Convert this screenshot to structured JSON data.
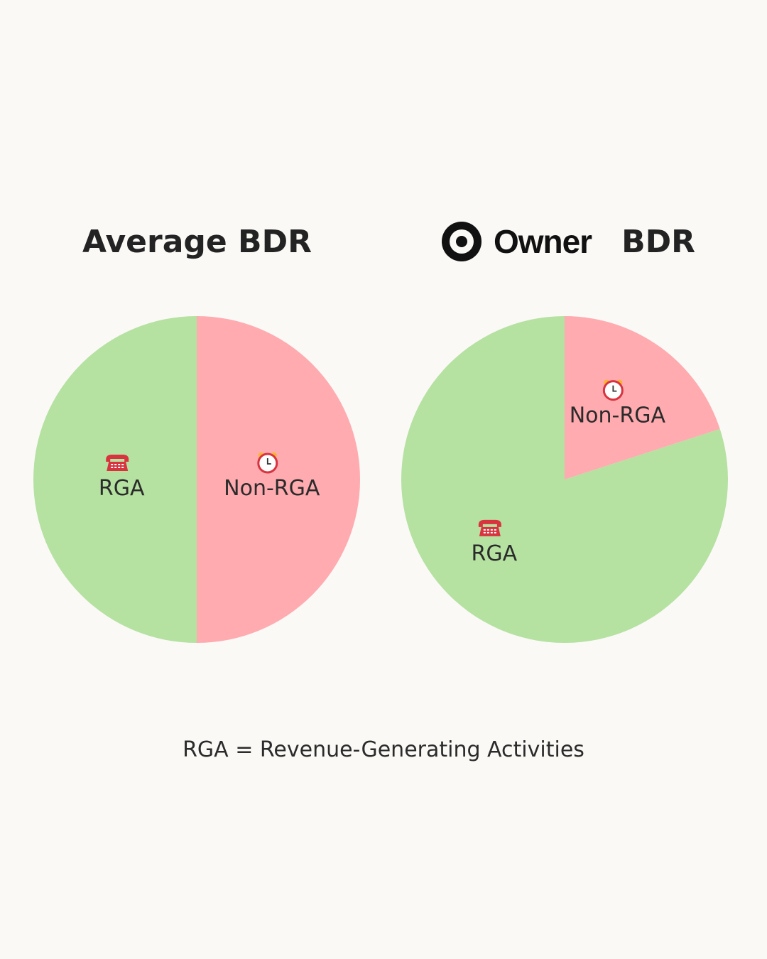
{
  "footnote": "RGA = Revenue-Generating Activities",
  "colors": {
    "rga": "#b5e1a1",
    "non_rga": "#ffabb0",
    "background": "#faf9f6"
  },
  "icons": {
    "rga": "telephone-icon",
    "non_rga": "alarm-clock-icon"
  },
  "chart_data": [
    {
      "type": "pie",
      "title": "Average BDR",
      "slices": [
        {
          "label": "RGA",
          "value": 50,
          "icon": "telephone-icon"
        },
        {
          "label": "Non-RGA",
          "value": 50,
          "icon": "alarm-clock-icon"
        }
      ]
    },
    {
      "type": "pie",
      "title_logo": "Owner",
      "title": "BDR",
      "slices": [
        {
          "label": "RGA",
          "value": 80,
          "icon": "telephone-icon"
        },
        {
          "label": "Non-RGA",
          "value": 20,
          "icon": "alarm-clock-icon"
        }
      ]
    }
  ]
}
